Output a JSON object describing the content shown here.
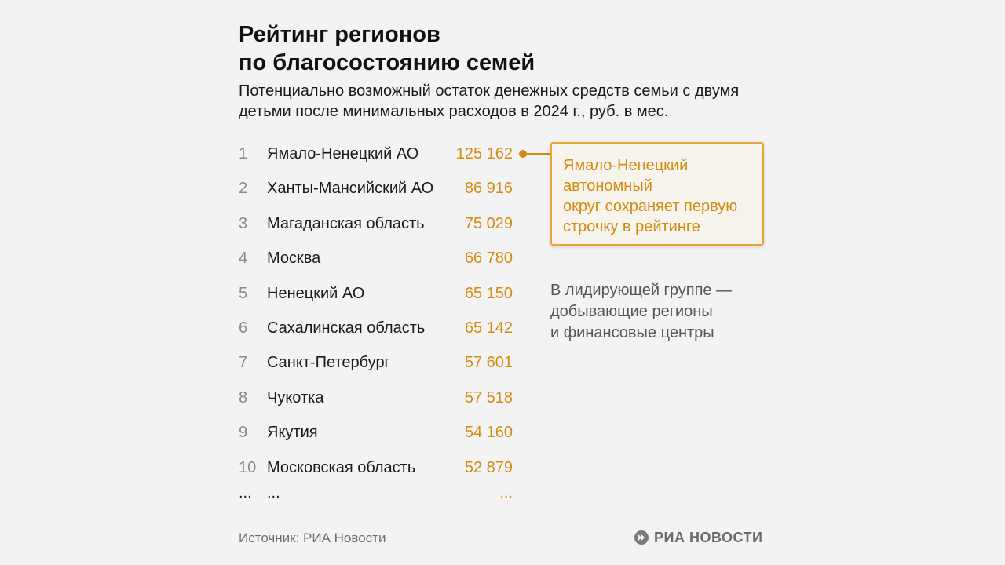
{
  "header": {
    "title_line1": "Рейтинг регионов",
    "title_line2": "по благосостоянию семей",
    "subtitle_line1": "Потенциально возможный остаток денежных средств семьи с двумя",
    "subtitle_line2": "детьми после минимальных расходов в 2024 г., руб. в мес."
  },
  "chart_data": {
    "type": "table",
    "title": "Рейтинг регионов по благосостоянию семей",
    "columns": [
      "rank",
      "region",
      "value"
    ],
    "ranks": [
      "1",
      "2",
      "3",
      "4",
      "5",
      "6",
      "7",
      "8",
      "9",
      "10"
    ],
    "categories": [
      "Ямало-Ненецкий АО",
      "Ханты-Мансийский АО",
      "Магаданская область",
      "Москва",
      "Ненецкий АО",
      "Сахалинская область",
      "Санкт-Петербург",
      "Чукотка",
      "Якутия",
      "Московская область"
    ],
    "values": [
      125162,
      86916,
      75029,
      66780,
      65150,
      65142,
      57601,
      57518,
      54160,
      52879
    ],
    "value_labels": [
      "125 162",
      "86 916",
      "75 029",
      "66 780",
      "65 150",
      "65 142",
      "57 601",
      "57 518",
      "54 160",
      "52 879"
    ],
    "continuation": {
      "rank": "...",
      "region": "...",
      "value": "..."
    },
    "value_color": "#d38b12"
  },
  "callout": {
    "line1": "Ямало-Ненецкий",
    "line2": "автономный",
    "line3": "округ сохраняет первую",
    "line4": "строчку в рейтинге"
  },
  "note": {
    "line1": "В лидирующей группе —",
    "line2": "добывающие регионы",
    "line3": "и финансовые центры"
  },
  "footer": {
    "source": "Источник: РИА Новости",
    "logo_text": "РИА НОВОСТИ",
    "logo_icon": "ria-logo-icon"
  },
  "colors": {
    "accent": "#d38b12",
    "background": "#f3f3f3"
  }
}
